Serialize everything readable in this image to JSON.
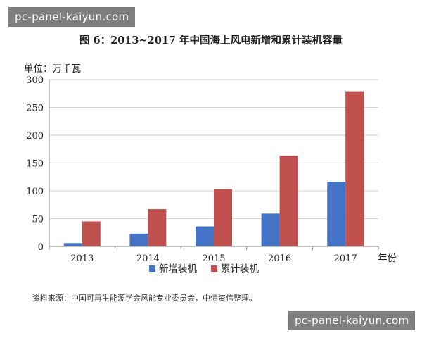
{
  "watermark": {
    "text": "pc-panel-kaiyun.com"
  },
  "header": {
    "title": "图 6：2013~2017 年中国海上风电新增和累计装机容量",
    "unit": "单位：万千瓦"
  },
  "footer": {
    "source": "资料来源：中国可再生能源学会风能专业委员会，中债资信整理。"
  },
  "chart_data": {
    "type": "bar",
    "title": "图 6：2013~2017 年中国海上风电新增和累计装机容量",
    "ylabel": "单位：万千瓦",
    "xlabel": "年份",
    "categories": [
      "2013",
      "2014",
      "2015",
      "2016",
      "2017"
    ],
    "ylim": [
      0,
      300
    ],
    "yticks": [
      0,
      50,
      100,
      150,
      200,
      250,
      300
    ],
    "grid": true,
    "legend": "bottom",
    "series": [
      {
        "name": "新增装机",
        "color": "#4472c4",
        "values": [
          6,
          23,
          36,
          59,
          116
        ]
      },
      {
        "name": "累计装机",
        "color": "#c0504d",
        "values": [
          45,
          67,
          103,
          163,
          279
        ]
      }
    ]
  }
}
